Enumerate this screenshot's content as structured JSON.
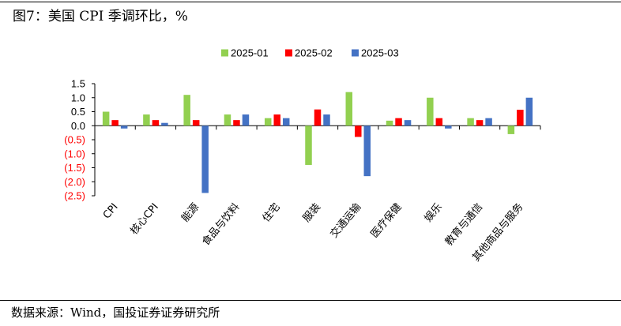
{
  "header": {
    "title": "图7：美国 CPI 季调环比，%"
  },
  "footer": {
    "source": "数据来源：Wind，国投证券证券研究所"
  },
  "chart_data": {
    "type": "bar",
    "title": "图7：美国 CPI 季调环比，%",
    "xlabel": "",
    "ylabel": "",
    "categories": [
      "CPI",
      "核心CPI",
      "能源",
      "食品与饮料",
      "住宅",
      "服装",
      "交通运输",
      "医疗保健",
      "娱乐",
      "教育与通信",
      "其他商品与服务"
    ],
    "series": [
      {
        "name": "2025-01",
        "color": "#92D050",
        "values": [
          0.5,
          0.4,
          1.1,
          0.4,
          0.27,
          -1.4,
          1.2,
          0.18,
          1.0,
          0.27,
          -0.3
        ]
      },
      {
        "name": "2025-02",
        "color": "#FF0000",
        "values": [
          0.2,
          0.2,
          0.2,
          0.2,
          0.4,
          0.58,
          -0.4,
          0.27,
          0.27,
          0.2,
          0.57
        ]
      },
      {
        "name": "2025-03",
        "color": "#4472C4",
        "values": [
          -0.1,
          0.1,
          -2.4,
          0.4,
          0.27,
          0.4,
          -1.8,
          0.2,
          -0.1,
          0.27,
          1.0
        ]
      }
    ],
    "ylim": [
      -2.5,
      1.5
    ],
    "yticks": [
      "1.5",
      "1.0",
      "0.5",
      "0.0",
      "(0.5)",
      "(1.0)",
      "(1.5)",
      "(2.0)",
      "(2.5)"
    ],
    "negative_tick_color": "#FF0000",
    "legend_position": "top-center",
    "grid": false
  }
}
